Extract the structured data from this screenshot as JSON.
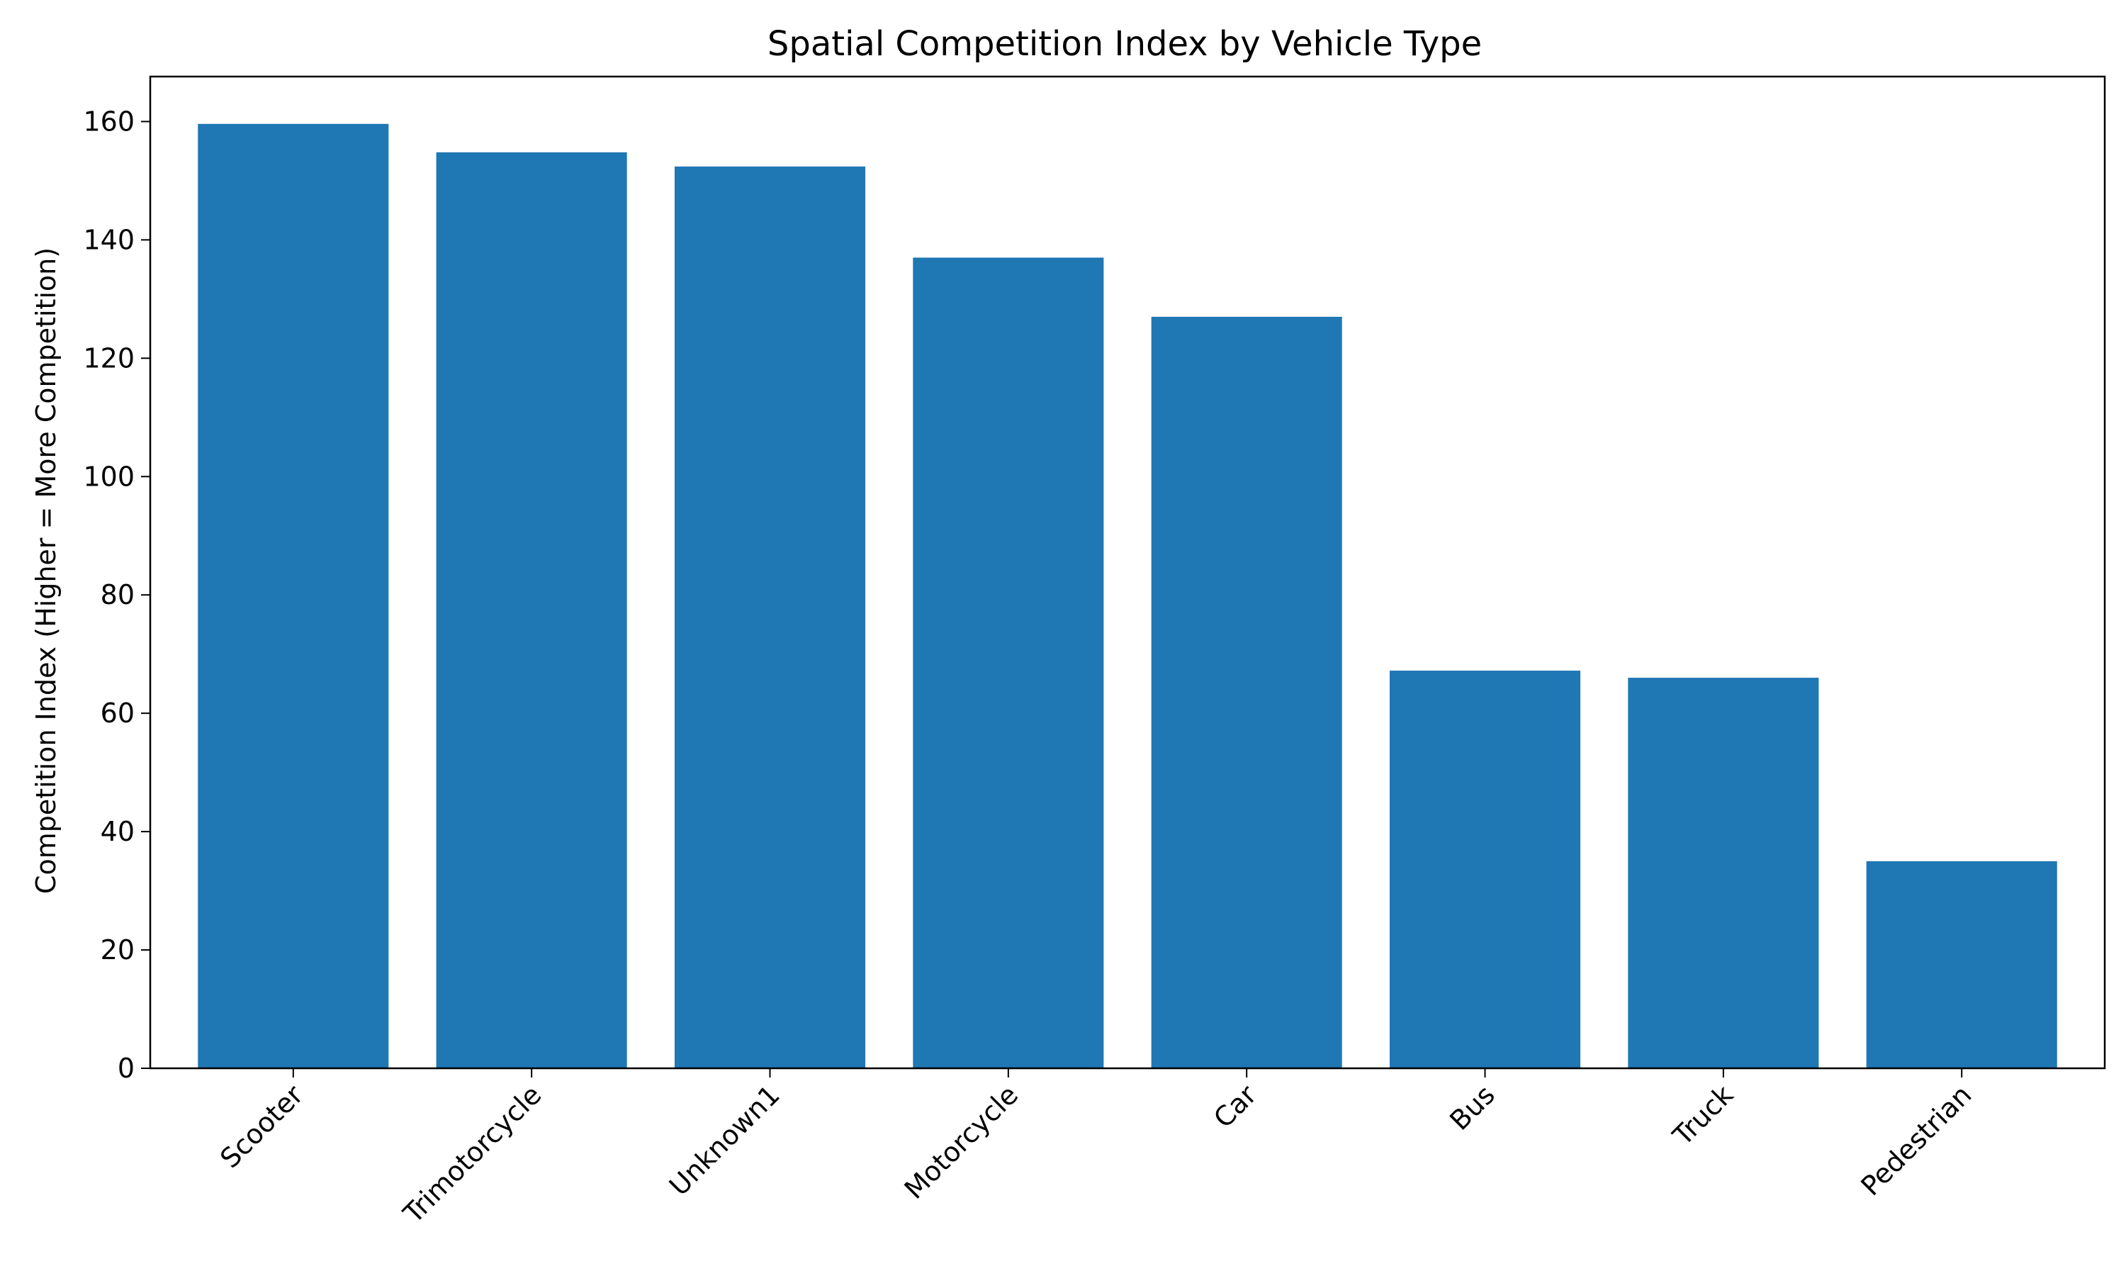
{
  "chart_data": {
    "type": "bar",
    "title": "Spatial Competition Index by Vehicle Type",
    "xlabel": "",
    "ylabel": "Competition Index (Higher = More Competition)",
    "categories": [
      "Scooter",
      "Trimotorcycle",
      "Unknown1",
      "Motorcycle",
      "Car",
      "Bus",
      "Truck",
      "Pedestrian"
    ],
    "values": [
      159.6,
      154.8,
      152.4,
      137.0,
      127.0,
      67.2,
      66.0,
      35.0
    ],
    "ylim": [
      0,
      167.6
    ],
    "yticks": [
      0,
      20,
      40,
      60,
      80,
      100,
      120,
      140,
      160
    ],
    "xtick_rotation": 45,
    "grid": false,
    "legend": "none",
    "bar_color": "#1f77b4"
  }
}
